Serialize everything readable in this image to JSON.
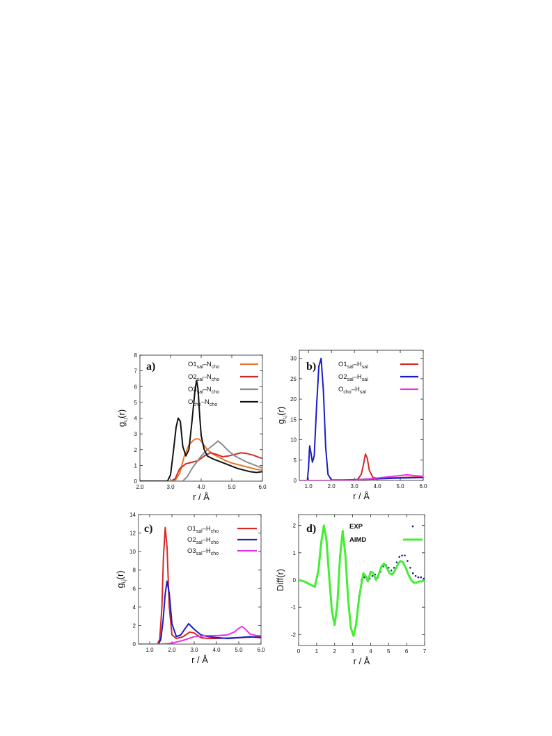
{
  "figure": {
    "background": "#ffffff",
    "colors": {
      "orange": "#e8772e",
      "red": "#d42a26",
      "gray": "#8c8c8c",
      "black": "#111111",
      "blue": "#1c1cc8",
      "magenta": "#e632e6",
      "green": "#44ee33",
      "navy": "#1a1a8c"
    }
  },
  "chart_data": [
    {
      "panel": "a)",
      "type": "line",
      "xlabel": "r / Å",
      "ylabel": "g_{i,j}(r)",
      "xlim": [
        2.0,
        6.0
      ],
      "ylim": [
        0,
        8
      ],
      "xticks": [
        "2.0",
        "3.0",
        "4.0",
        "5.0",
        "6.0"
      ],
      "yticks": [
        "0",
        "1",
        "2",
        "3",
        "4",
        "5",
        "6",
        "7",
        "8"
      ],
      "legend_position": "top-right",
      "series": [
        {
          "name": "O1_sal–N_cho",
          "color": "#e8772e",
          "x": [
            2.0,
            3.0,
            3.15,
            3.3,
            3.45,
            3.6,
            3.75,
            3.85,
            3.95,
            4.05,
            4.2,
            4.4,
            4.6,
            4.8,
            5.0,
            5.2,
            5.4,
            5.6,
            5.8,
            6.0
          ],
          "y": [
            0,
            0,
            0.05,
            0.5,
            1.6,
            2.3,
            2.6,
            2.7,
            2.65,
            2.4,
            2.0,
            1.7,
            1.5,
            1.3,
            1.15,
            1.05,
            0.95,
            0.85,
            0.75,
            0.7
          ]
        },
        {
          "name": "O2_sal–N_cho",
          "color": "#d42a26",
          "x": [
            2.0,
            3.0,
            3.15,
            3.3,
            3.5,
            3.7,
            3.9,
            4.1,
            4.3,
            4.5,
            4.7,
            4.9,
            5.1,
            5.3,
            5.5,
            5.7,
            5.9,
            6.0
          ],
          "y": [
            0,
            0,
            0.15,
            0.8,
            1.1,
            1.2,
            1.3,
            1.6,
            1.8,
            1.7,
            1.55,
            1.6,
            1.7,
            1.8,
            1.75,
            1.65,
            1.5,
            1.45
          ]
        },
        {
          "name": "O3_sal–N_cho",
          "color": "#8c8c8c",
          "x": [
            2.0,
            3.4,
            3.55,
            3.7,
            3.85,
            4.0,
            4.2,
            4.4,
            4.55,
            4.7,
            4.9,
            5.1,
            5.3,
            5.5,
            5.7,
            5.9,
            6.0
          ],
          "y": [
            0,
            0,
            0.3,
            0.8,
            1.2,
            1.6,
            2.0,
            2.3,
            2.55,
            2.3,
            1.9,
            1.6,
            1.4,
            1.2,
            1.05,
            0.9,
            0.85
          ]
        },
        {
          "name": "O_cho–N_cho",
          "color": "#111111",
          "x": [
            2.0,
            2.9,
            3.0,
            3.1,
            3.18,
            3.25,
            3.32,
            3.4,
            3.5,
            3.6,
            3.7,
            3.8,
            3.85,
            3.9,
            3.95,
            4.0,
            4.1,
            4.2,
            4.4,
            4.6,
            4.8,
            5.0,
            5.2,
            5.4,
            5.6,
            5.8,
            6.0
          ],
          "y": [
            0,
            0,
            0.4,
            2.0,
            3.4,
            4.0,
            3.8,
            2.2,
            1.6,
            2.0,
            3.8,
            5.8,
            6.4,
            5.8,
            4.2,
            2.9,
            2.0,
            1.6,
            1.4,
            1.25,
            1.1,
            0.95,
            0.8,
            0.7,
            0.6,
            0.55,
            0.6
          ]
        }
      ]
    },
    {
      "panel": "b)",
      "type": "line",
      "xlabel": "r / Å",
      "ylabel": "g_{i,j}(r)",
      "xlim": [
        0.6,
        6.0
      ],
      "ylim": [
        0,
        32
      ],
      "xticks": [
        "1.0",
        "2.0",
        "3.0",
        "4.0",
        "5.0",
        "6.0"
      ],
      "yticks": [
        "0",
        "5",
        "10",
        "15",
        "20",
        "25",
        "30"
      ],
      "legend_position": "top-right",
      "series": [
        {
          "name": "O1_sal–H_sal",
          "color": "#d42a26",
          "x": [
            0.6,
            3.0,
            3.15,
            3.3,
            3.4,
            3.48,
            3.56,
            3.65,
            3.8,
            4.0,
            4.5,
            5.0,
            5.5,
            6.0
          ],
          "y": [
            0,
            0,
            0.3,
            1.5,
            4.0,
            6.5,
            5.5,
            2.5,
            0.8,
            0.5,
            0.6,
            0.7,
            0.8,
            0.8
          ]
        },
        {
          "name": "O2_sal–H_sal",
          "color": "#1c1cc8",
          "x": [
            0.6,
            0.95,
            1.0,
            1.05,
            1.1,
            1.17,
            1.25,
            1.35,
            1.45,
            1.55,
            1.65,
            1.75,
            1.85,
            2.0,
            2.5,
            3.0,
            4.0,
            5.0,
            6.0
          ],
          "y": [
            0,
            0,
            3.0,
            8.5,
            7.0,
            4.5,
            6.0,
            18.0,
            28.0,
            30.0,
            22.0,
            8.0,
            1.5,
            0.1,
            0.1,
            0.2,
            0.4,
            0.6,
            0.7
          ]
        },
        {
          "name": "O_cho–H_sal",
          "color": "#e632e6",
          "x": [
            0.6,
            2.5,
            3.0,
            3.5,
            4.0,
            4.5,
            5.0,
            5.3,
            5.6,
            6.0
          ],
          "y": [
            0,
            0,
            0.1,
            0.3,
            0.6,
            0.9,
            1.2,
            1.4,
            1.2,
            1.0
          ]
        }
      ]
    },
    {
      "panel": "c)",
      "type": "line",
      "xlabel": "r / Å",
      "ylabel": "g_{i,j}(r)",
      "xlim": [
        0.5,
        6.0
      ],
      "ylim": [
        0,
        14
      ],
      "xticks": [
        "1.0",
        "2.0",
        "3.0",
        "4.0",
        "5.0",
        "6.0"
      ],
      "yticks": [
        "0",
        "2",
        "4",
        "6",
        "8",
        "10",
        "12",
        "14"
      ],
      "legend_position": "top-right",
      "series": [
        {
          "name": "O1_sal–H_cho",
          "color": "#d42a26",
          "x": [
            0.5,
            1.35,
            1.45,
            1.55,
            1.62,
            1.7,
            1.78,
            1.88,
            2.0,
            2.2,
            2.5,
            2.8,
            3.0,
            3.3,
            3.6,
            4.0,
            5.0,
            6.0
          ],
          "y": [
            0,
            0,
            0.5,
            4.0,
            9.5,
            12.6,
            10.5,
            4.0,
            1.0,
            0.6,
            0.8,
            1.3,
            1.2,
            0.7,
            0.6,
            0.6,
            0.7,
            0.8
          ]
        },
        {
          "name": "O2_sal–H_cho",
          "color": "#1c1cc8",
          "x": [
            0.5,
            1.4,
            1.5,
            1.6,
            1.7,
            1.78,
            1.88,
            2.0,
            2.2,
            2.4,
            2.6,
            2.75,
            3.0,
            3.3,
            3.6,
            4.0,
            4.5,
            5.0,
            5.5,
            6.0
          ],
          "y": [
            0,
            0,
            0.5,
            2.5,
            5.5,
            6.8,
            5.5,
            2.2,
            0.8,
            1.0,
            1.7,
            2.2,
            1.6,
            1.0,
            0.8,
            0.7,
            0.6,
            0.7,
            0.8,
            0.7
          ]
        },
        {
          "name": "O3_sal–H_cho",
          "color": "#e632e6",
          "x": [
            0.5,
            1.5,
            2.0,
            2.5,
            3.0,
            3.5,
            4.0,
            4.5,
            4.8,
            5.0,
            5.15,
            5.3,
            5.5,
            5.8,
            6.0
          ],
          "y": [
            0,
            0,
            0.1,
            0.4,
            0.8,
            0.9,
            0.9,
            1.0,
            1.3,
            1.7,
            1.9,
            1.6,
            1.1,
            0.9,
            0.9
          ]
        }
      ]
    },
    {
      "panel": "d)",
      "type": "line",
      "xlabel": "r / Å",
      "ylabel": "Diff(r)",
      "xlim": [
        0,
        7
      ],
      "ylim": [
        -2.4,
        2.4
      ],
      "xticks": [
        "0",
        "1",
        "2",
        "3",
        "4",
        "5",
        "6",
        "7"
      ],
      "yticks": [
        "2",
        "1",
        "0",
        "-1",
        "-2"
      ],
      "legend_position": "top-right",
      "series": [
        {
          "name": "EXP",
          "color": "#1a1a8c",
          "style": "dots",
          "x": [
            0,
            0.3,
            0.6,
            0.9,
            1.1,
            1.25,
            1.4,
            1.55,
            1.7,
            1.85,
            2.0,
            2.15,
            2.3,
            2.45,
            2.6,
            2.75,
            2.9,
            3.05,
            3.2,
            3.35,
            3.5,
            3.65,
            3.8,
            3.95,
            4.1,
            4.25,
            4.4,
            4.55,
            4.7,
            4.85,
            5.0,
            5.15,
            5.3,
            5.45,
            5.6,
            5.75,
            5.9,
            6.05,
            6.2,
            6.35,
            6.5,
            6.65,
            6.8,
            6.95
          ],
          "y": [
            0,
            -0.05,
            -0.15,
            -0.25,
            0.3,
            1.3,
            1.95,
            1.4,
            0.1,
            -1.1,
            -1.6,
            -0.9,
            0.8,
            1.75,
            0.9,
            -0.6,
            -1.7,
            -2.0,
            -1.5,
            -0.6,
            0.0,
            0.1,
            0.05,
            0.05,
            0.15,
            0.2,
            0.1,
            0.3,
            0.5,
            0.55,
            0.45,
            0.35,
            0.45,
            0.65,
            0.85,
            0.9,
            0.9,
            0.7,
            0.45,
            0.25,
            0.15,
            0.1,
            0.1,
            0.05
          ]
        },
        {
          "name": "AIMD",
          "color": "#44ee33",
          "style": "line",
          "x": [
            0,
            0.3,
            0.6,
            0.9,
            1.1,
            1.25,
            1.4,
            1.55,
            1.7,
            1.85,
            2.0,
            2.15,
            2.3,
            2.45,
            2.6,
            2.75,
            2.9,
            3.05,
            3.2,
            3.35,
            3.5,
            3.6,
            3.72,
            3.85,
            4.0,
            4.15,
            4.3,
            4.45,
            4.6,
            4.75,
            4.9,
            5.05,
            5.2,
            5.35,
            5.5,
            5.65,
            5.8,
            5.95,
            6.1,
            6.25,
            6.4,
            6.55,
            6.7,
            6.85,
            7.0
          ],
          "y": [
            0,
            -0.05,
            -0.15,
            -0.25,
            0.35,
            1.35,
            2.0,
            1.45,
            0.1,
            -1.15,
            -1.65,
            -0.9,
            0.85,
            1.8,
            0.9,
            -0.7,
            -1.75,
            -2.05,
            -1.6,
            -0.7,
            -0.1,
            0.25,
            0.15,
            -0.05,
            0.3,
            0.25,
            0.0,
            0.2,
            0.5,
            0.6,
            0.45,
            0.25,
            0.2,
            0.35,
            0.55,
            0.7,
            0.65,
            0.45,
            0.2,
            0.0,
            -0.1,
            -0.1,
            -0.05,
            -0.05,
            0.0
          ]
        }
      ]
    }
  ]
}
